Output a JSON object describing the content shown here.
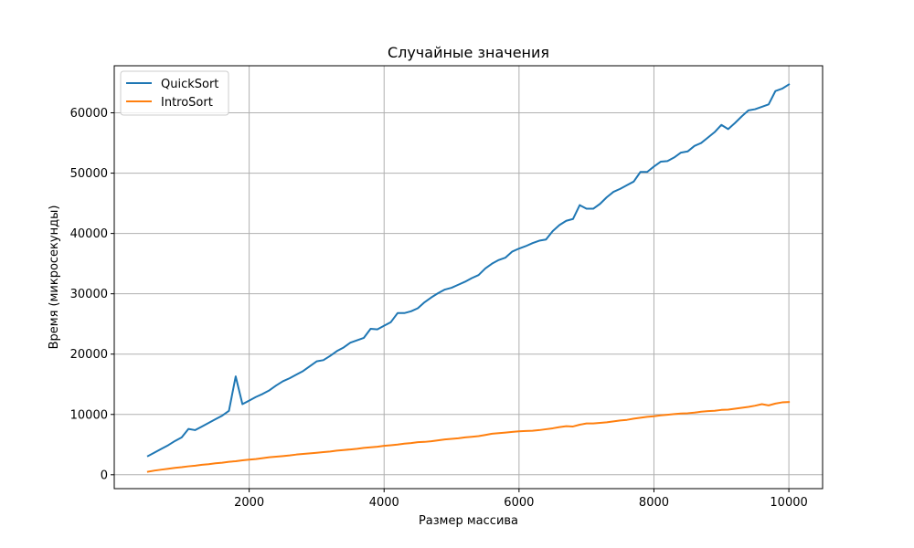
{
  "chart_data": {
    "type": "line",
    "title": "Случайные значения",
    "xlabel": "Размер массива",
    "ylabel": "Время (микросекунды)",
    "xlim": [
      0,
      10500
    ],
    "ylim": [
      -2300,
      67800
    ],
    "xticks": [
      2000,
      4000,
      6000,
      8000,
      10000
    ],
    "yticks": [
      0,
      10000,
      20000,
      30000,
      40000,
      50000,
      60000
    ],
    "grid": true,
    "legend_position": "top-left",
    "x": [
      500,
      600,
      700,
      800,
      900,
      1000,
      1100,
      1200,
      1300,
      1400,
      1500,
      1600,
      1700,
      1800,
      1900,
      2000,
      2100,
      2200,
      2300,
      2400,
      2500,
      2600,
      2700,
      2800,
      2900,
      3000,
      3100,
      3200,
      3300,
      3400,
      3500,
      3600,
      3700,
      3800,
      3900,
      4000,
      4100,
      4200,
      4300,
      4400,
      4500,
      4600,
      4700,
      4800,
      4900,
      5000,
      5100,
      5200,
      5300,
      5400,
      5500,
      5600,
      5700,
      5800,
      5900,
      6000,
      6100,
      6200,
      6300,
      6400,
      6500,
      6600,
      6700,
      6800,
      6900,
      7000,
      7100,
      7200,
      7300,
      7400,
      7500,
      7600,
      7700,
      7800,
      7900,
      8000,
      8100,
      8200,
      8300,
      8400,
      8500,
      8600,
      8700,
      8800,
      8900,
      9000,
      9100,
      9200,
      9300,
      9400,
      9500,
      9600,
      9700,
      9800,
      9900,
      10000
    ],
    "series": [
      {
        "name": "QuickSort",
        "color": "#1f77b4",
        "values": [
          3100,
          3700,
          4300,
          4900,
          5600,
          6200,
          7600,
          7400,
          8000,
          8600,
          9200,
          9800,
          10600,
          16300,
          11700,
          12300,
          12900,
          13400,
          14000,
          14800,
          15500,
          16000,
          16600,
          17200,
          18000,
          18800,
          19000,
          19700,
          20500,
          21100,
          21900,
          22300,
          22700,
          24200,
          24100,
          24700,
          25300,
          26800,
          26800,
          27100,
          27600,
          28600,
          29400,
          30100,
          30700,
          31000,
          31500,
          32000,
          32600,
          33100,
          34200,
          35000,
          35600,
          36000,
          37000,
          37500,
          37900,
          38400,
          38800,
          39000,
          40400,
          41400,
          42100,
          42400,
          44700,
          44100,
          44100,
          44900,
          46000,
          46900,
          47400,
          48000,
          48600,
          50200,
          50200,
          51100,
          51900,
          52000,
          52600,
          53400,
          53600,
          54500,
          55000,
          55900,
          56800,
          58000,
          57300,
          58300,
          59400,
          60400,
          60600,
          61000,
          61400,
          63600,
          64000,
          64700
        ]
      },
      {
        "name": "IntroSort",
        "color": "#ff7f0e",
        "values": [
          500,
          700,
          850,
          1000,
          1150,
          1250,
          1400,
          1500,
          1650,
          1750,
          1900,
          2000,
          2150,
          2250,
          2400,
          2500,
          2600,
          2750,
          2900,
          3000,
          3100,
          3200,
          3350,
          3450,
          3550,
          3650,
          3750,
          3850,
          4000,
          4100,
          4200,
          4300,
          4450,
          4550,
          4650,
          4800,
          4900,
          5000,
          5150,
          5250,
          5400,
          5450,
          5550,
          5700,
          5850,
          5950,
          6050,
          6200,
          6300,
          6400,
          6600,
          6800,
          6900,
          7000,
          7100,
          7200,
          7250,
          7300,
          7400,
          7550,
          7700,
          7900,
          8050,
          8000,
          8300,
          8500,
          8500,
          8600,
          8700,
          8850,
          9000,
          9100,
          9300,
          9450,
          9600,
          9700,
          9850,
          9950,
          10050,
          10150,
          10200,
          10300,
          10450,
          10550,
          10600,
          10750,
          10800,
          10950,
          11100,
          11250,
          11450,
          11700,
          11500,
          11800,
          12000,
          12050
        ]
      }
    ]
  }
}
